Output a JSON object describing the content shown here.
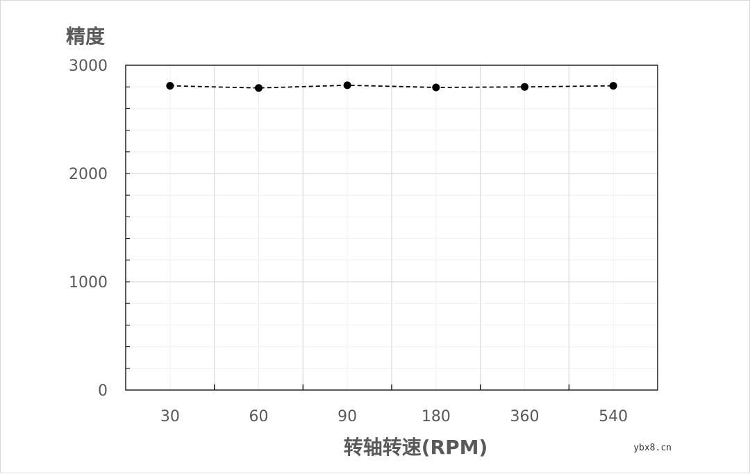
{
  "chart_data": {
    "type": "line",
    "title": "",
    "ylabel": "精度",
    "xlabel": "转轴转速(RPM)",
    "categories": [
      "30",
      "60",
      "90",
      "180",
      "360",
      "540"
    ],
    "series": [
      {
        "values": [
          2810,
          2790,
          2815,
          2795,
          2800,
          2810
        ],
        "line_style": "dashed",
        "marker": "circle",
        "color": "#000000"
      }
    ],
    "ylim": [
      0,
      3000
    ],
    "yticks": [
      "0",
      "1000",
      "2000",
      "3000"
    ],
    "grid": true
  },
  "watermark": "ybx8.cn"
}
